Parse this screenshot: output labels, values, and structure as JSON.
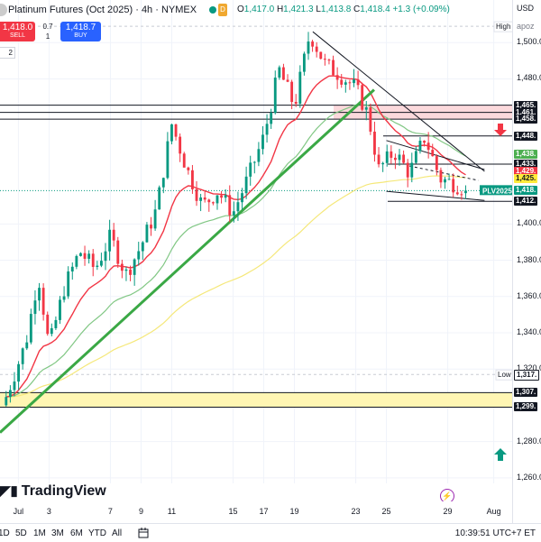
{
  "legend": {
    "title": "Platinum Futures (Oct 2025) · 4h · NYMEX",
    "market_badge": "D",
    "ohlc": {
      "o_label": "O",
      "o": "1,417.0",
      "h_label": "H",
      "h": "1,421.3",
      "l_label": "L",
      "l": "1,413.8",
      "c_label": "C",
      "c": "1,418.4",
      "change": "+1.3 (+0.09%)"
    }
  },
  "trade": {
    "sell_price": "1,418.0",
    "sell_label": "SELL",
    "spread_top": "0.7",
    "spread_qty": "1",
    "buy_price": "1,418.7",
    "buy_label": "BUY"
  },
  "indicator_badge": "2",
  "price_scale": {
    "currency": "USD",
    "mode": "apoz",
    "ticks": [
      {
        "label": "1,500.0",
        "value": 1500
      },
      {
        "label": "1,480.0",
        "value": 1480
      },
      {
        "label": "1,400.0",
        "value": 1400
      },
      {
        "label": "1,380.0",
        "value": 1380
      },
      {
        "label": "1,360.0",
        "value": 1360
      },
      {
        "label": "1,340.0",
        "value": 1340
      },
      {
        "label": "1,320.0",
        "value": 1320
      },
      {
        "label": "1,280.0",
        "value": 1280
      },
      {
        "label": "1,260.0",
        "value": 1260
      }
    ],
    "tags": [
      {
        "label": "1,465.",
        "value": 1465.5,
        "bg": "#131722",
        "fg": "#ffffff"
      },
      {
        "label": "1,461.",
        "value": 1461.5,
        "bg": "#131722",
        "fg": "#ffffff"
      },
      {
        "label": "1,458.",
        "value": 1457.8,
        "bg": "#131722",
        "fg": "#ffffff"
      },
      {
        "label": "1,448.",
        "value": 1448.5,
        "bg": "#131722",
        "fg": "#ffffff"
      },
      {
        "label": "1,438.",
        "value": 1438.4,
        "bg": "#4caf50",
        "fg": "#ffffff"
      },
      {
        "label": "1,433.",
        "value": 1433.0,
        "bg": "#131722",
        "fg": "#ffffff"
      },
      {
        "label": "1,429.",
        "value": 1428.8,
        "bg": "#f23645",
        "fg": "#ffffff"
      },
      {
        "label": "1,425.",
        "value": 1425.2,
        "bg": "#ffeb3b",
        "fg": "#131722"
      },
      {
        "label": "1,418.",
        "value": 1418.4,
        "bg": "#089981",
        "fg": "#ffffff"
      },
      {
        "label": "1,412.",
        "value": 1412.5,
        "bg": "#131722",
        "fg": "#ffffff"
      },
      {
        "label": "1,317.",
        "value": 1317.0,
        "bg": "#ffffff",
        "fg": "#131722"
      },
      {
        "label": "1,307.",
        "value": 1307.0,
        "bg": "#131722",
        "fg": "#ffffff"
      },
      {
        "label": "1,299.",
        "value": 1299.0,
        "bg": "#131722",
        "fg": "#ffffff"
      }
    ],
    "high_label": "High",
    "low_label": "Low",
    "symbol_tag": "PLV2025"
  },
  "time_axis": [
    {
      "label": "Jul",
      "day": 1
    },
    {
      "label": "3",
      "day": 3
    },
    {
      "label": "7",
      "day": 7
    },
    {
      "label": "9",
      "day": 9
    },
    {
      "label": "11",
      "day": 11
    },
    {
      "label": "15",
      "day": 15
    },
    {
      "label": "17",
      "day": 17
    },
    {
      "label": "19",
      "day": 19
    },
    {
      "label": "23",
      "day": 23
    },
    {
      "label": "25",
      "day": 25
    },
    {
      "label": "29",
      "day": 29
    },
    {
      "label": "Aug",
      "day": 32
    }
  ],
  "toolbar": {
    "ranges": [
      "1D",
      "5D",
      "1M",
      "3M",
      "6M",
      "YTD",
      "All"
    ],
    "clock": "10:39:51 UTC+7",
    "clock_suffix": "ET"
  },
  "brand": "TradingView",
  "colors": {
    "up": "#089981",
    "down": "#f23645",
    "ema_red": "#f23645",
    "ema_green": "#81c784",
    "ema_yellow": "#f5e87a",
    "trendline": "#3aa845",
    "resistance_zone": "#fbd9dc",
    "support_zone": "#fff6b3"
  },
  "chart_data": {
    "type": "candlestick",
    "price_range": [
      1248,
      1522
    ],
    "day_range": [
      -0.2,
      33.2
    ],
    "candles": []
  }
}
